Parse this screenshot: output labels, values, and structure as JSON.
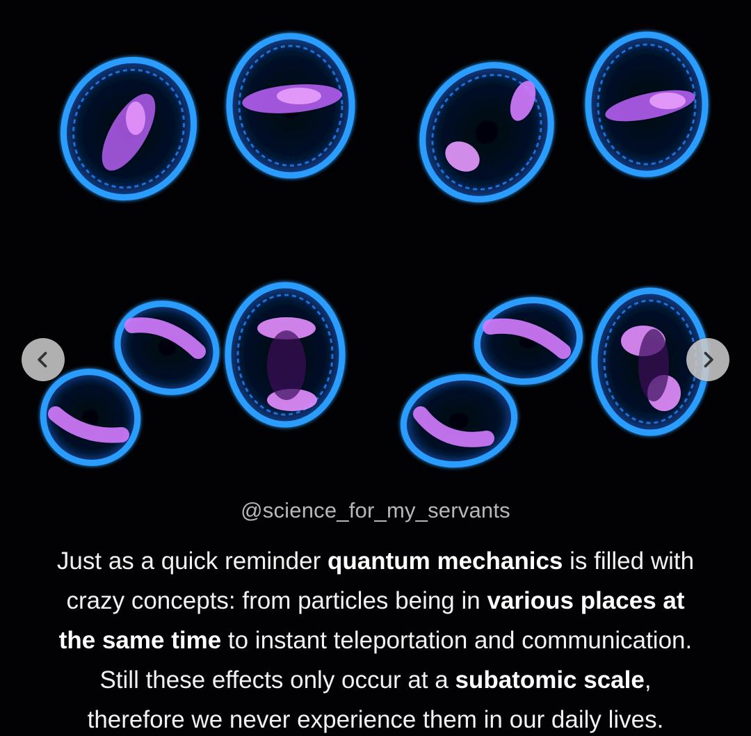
{
  "post": {
    "handle": "@science_for_my_servants",
    "caption_lines": [
      [
        {
          "text": "Just as a quick reminder ",
          "bold": false
        },
        {
          "text": "quantum mechanics",
          "bold": true
        },
        {
          "text": " is filled with",
          "bold": false
        }
      ],
      [
        {
          "text": "crazy concepts: from particles being in ",
          "bold": false
        },
        {
          "text": "various places at",
          "bold": true
        }
      ],
      [
        {
          "text": "the same time",
          "bold": true
        },
        {
          "text": " to instant teleportation and communication.",
          "bold": false
        }
      ],
      [
        {
          "text": "Still these effects only occur at a ",
          "bold": false
        },
        {
          "text": "subatomic scale",
          "bold": true
        },
        {
          "text": ",",
          "bold": false
        }
      ],
      [
        {
          "text": "therefore we never experience them in our daily lives.",
          "bold": false
        }
      ]
    ]
  },
  "carousel": {
    "prev_icon": "chevron-left-icon",
    "next_icon": "chevron-right-icon"
  },
  "colors": {
    "background": "#020205",
    "membrane": "#1e8cff",
    "chromosomes": "#d97cff",
    "handle_text": "#b8b8b8",
    "caption_text": "#f2f2f2",
    "nav_button": "#c8c8c8"
  }
}
